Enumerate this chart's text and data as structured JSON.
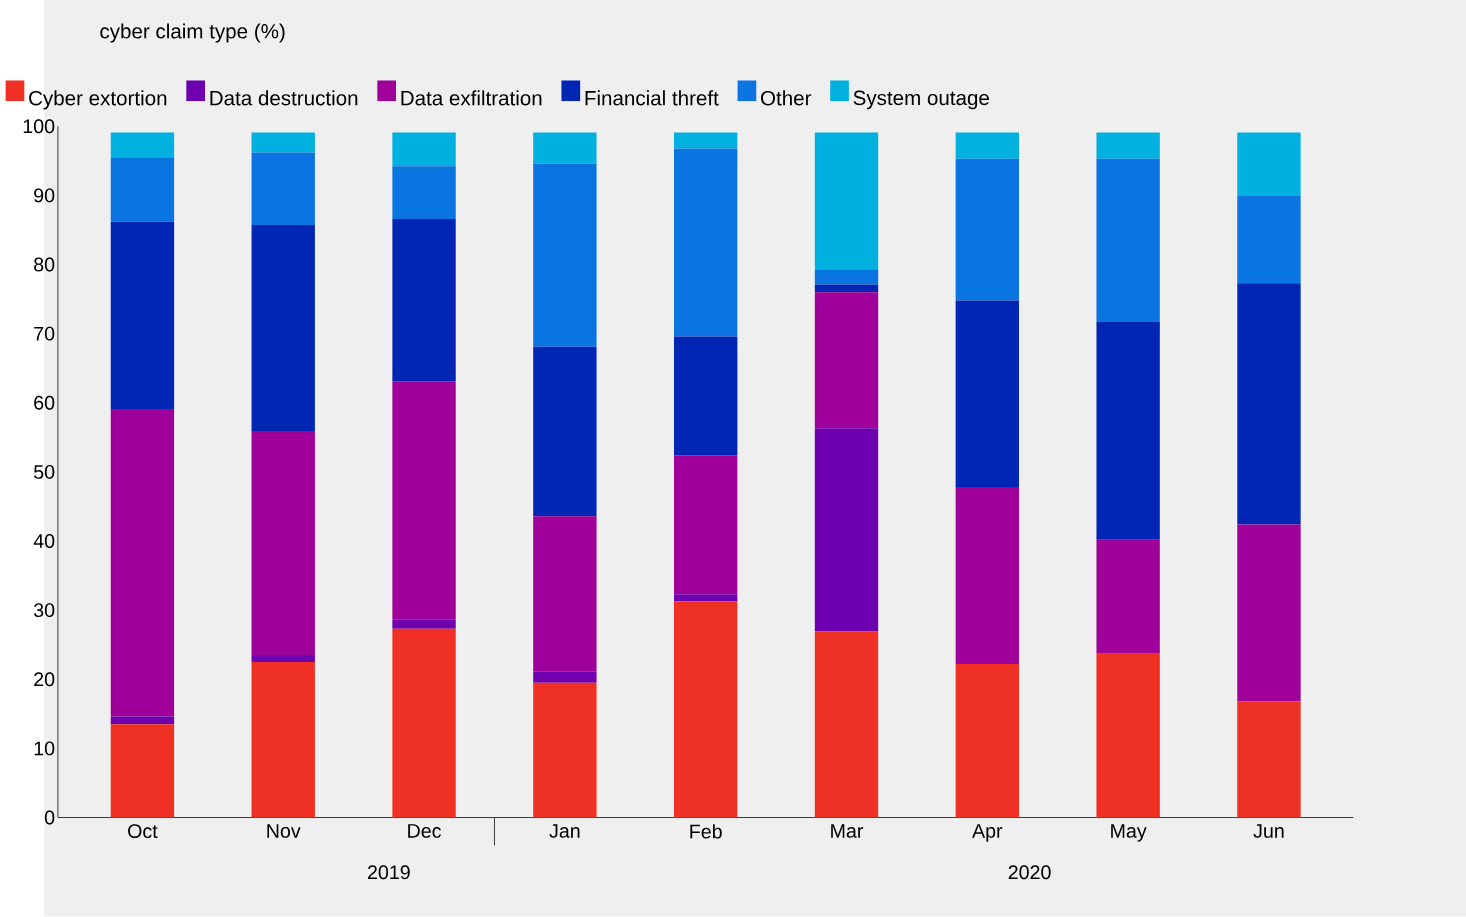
{
  "chart_data": {
    "type": "bar",
    "stacked": true,
    "title": "cyber claim type (%)",
    "categories": [
      "Oct",
      "Nov",
      "Dec",
      "Jan",
      "Feb",
      "Mar",
      "Apr",
      "May",
      "Jun"
    ],
    "series": [
      {
        "name": "Cyber extortion",
        "color": "#ee3124",
        "values": [
          13.5,
          22.5,
          27.3,
          19.5,
          31.3,
          26.9,
          22.2,
          23.7,
          16.8
        ]
      },
      {
        "name": "Data destruction",
        "color": "#6f00b0",
        "values": [
          1.1,
          1.0,
          1.4,
          1.6,
          1.0,
          29.4,
          0,
          0,
          0
        ]
      },
      {
        "name": "Data exfiltration",
        "color": "#a0009a",
        "values": [
          44.5,
          32.4,
          34.4,
          22.5,
          20.1,
          19.7,
          25.6,
          16.5,
          25.6
        ]
      },
      {
        "name": "Financial threft",
        "color": "#0026b3",
        "values": [
          27.1,
          29.8,
          23.5,
          24.5,
          17.2,
          1.1,
          27.0,
          31.5,
          34.9
        ]
      },
      {
        "name": "Other",
        "color": "#0a74e0",
        "values": [
          9.2,
          10.5,
          7.6,
          26.5,
          27.2,
          2.1,
          20.5,
          23.6,
          12.6
        ]
      },
      {
        "name": "System outage",
        "color": "#00b1e0",
        "values": [
          3.7,
          2.9,
          4.9,
          4.5,
          2.3,
          19.9,
          3.8,
          3.8,
          9.2
        ]
      }
    ],
    "ylim": [
      0,
      100
    ],
    "yticks": [
      0,
      10,
      20,
      30,
      40,
      50,
      60,
      70,
      80,
      90,
      100
    ],
    "grid": false,
    "legend": "top left",
    "annotations": [
      "2019",
      "2020"
    ]
  }
}
